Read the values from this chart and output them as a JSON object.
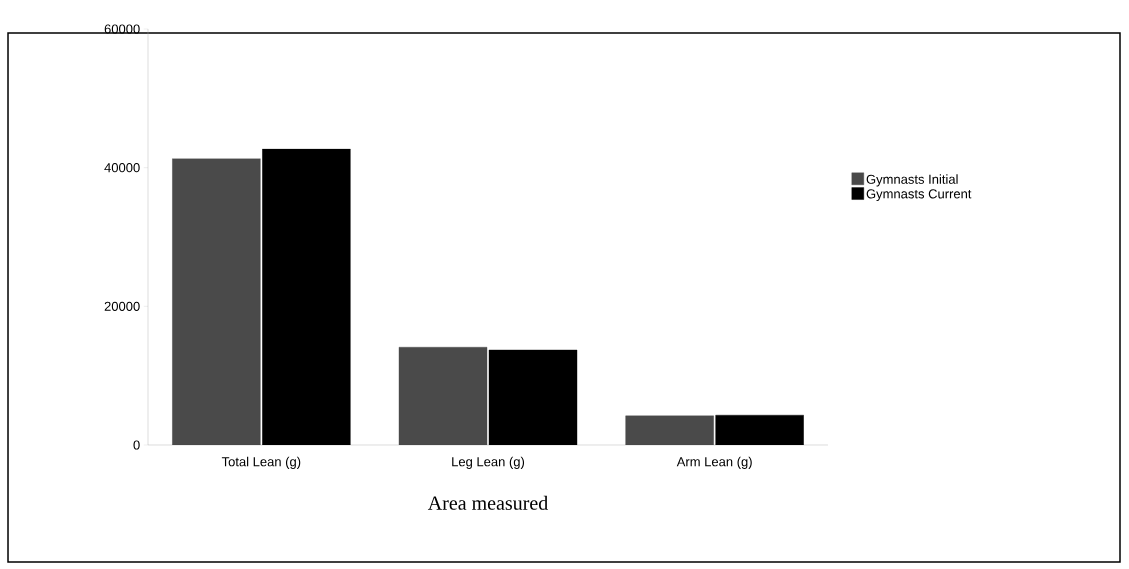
{
  "chart_data": {
    "type": "bar",
    "xlabel": "Area measured",
    "categories": [
      "Total Lean (g)",
      "Leg Lean (g)",
      "Arm Lean (g)"
    ],
    "series": [
      {
        "name": "Gymnasts Initial",
        "color": "#4a4a4a",
        "values": [
          41300,
          14100,
          4200
        ]
      },
      {
        "name": "Gymnasts Current",
        "color": "#000000",
        "values": [
          42700,
          13700,
          4300
        ]
      }
    ],
    "ylim": [
      0,
      60000
    ],
    "yticks": [
      0,
      20000,
      40000,
      60000
    ],
    "grid": false,
    "legend": "right"
  }
}
